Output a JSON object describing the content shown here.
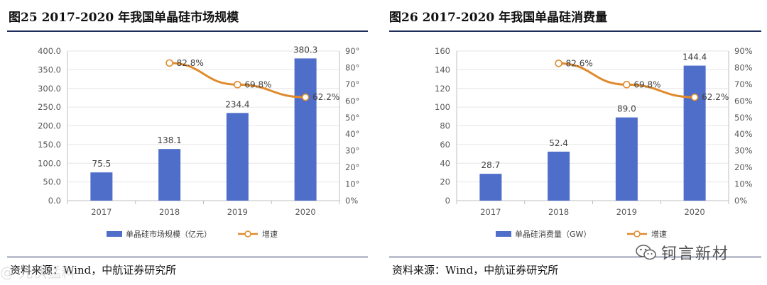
{
  "charts": [
    {
      "title": "图25  2017-2020 年我国单晶硅市场规模",
      "source": "资料来源：Wind，中航证券研究所",
      "chart_data": {
        "type": "bar+line",
        "categories": [
          "2017",
          "2018",
          "2019",
          "2020"
        ],
        "series": [
          {
            "name": "单晶硅市场规模（亿元）",
            "type": "bar",
            "axis": "left",
            "values": [
              75.5,
              138.1,
              234.4,
              380.3
            ],
            "labels": [
              "75.5",
              "138.1",
              "234.4",
              "380.3"
            ]
          },
          {
            "name": "增速",
            "type": "line",
            "axis": "right",
            "values": [
              null,
              82.8,
              69.8,
              62.2
            ],
            "labels": [
              "",
              "82.8%",
              "69.8%",
              "62.2%"
            ]
          }
        ],
        "left_axis": {
          "ylim": [
            0,
            400
          ],
          "ticks": [
            "0.0",
            "50.0",
            "100.0",
            "150.0",
            "200.0",
            "250.0",
            "300.0",
            "350.0",
            "400.0"
          ]
        },
        "right_axis": {
          "ylim": [
            0,
            90
          ],
          "ticks": [
            "0%",
            "10°",
            "20°",
            "30°",
            "40°",
            "50°",
            "60°",
            "70°",
            "80°",
            "90°"
          ]
        },
        "bar_color": "#4f6ec9",
        "line_color": "#e08a2c"
      }
    },
    {
      "title": "图26  2017-2020 年我国单晶硅消费量",
      "source": "资料来源：Wind，中航证券研究所",
      "chart_data": {
        "type": "bar+line",
        "categories": [
          "2017",
          "2018",
          "2019",
          "2020"
        ],
        "series": [
          {
            "name": "单晶硅消费量（GW）",
            "type": "bar",
            "axis": "left",
            "values": [
              28.7,
              52.4,
              89.0,
              144.4
            ],
            "labels": [
              "28.7",
              "52.4",
              "89.0",
              "144.4"
            ]
          },
          {
            "name": "增速",
            "type": "line",
            "axis": "right",
            "values": [
              null,
              82.6,
              69.8,
              62.2
            ],
            "labels": [
              "",
              "82.6%",
              "69.8%",
              "62.2%"
            ]
          }
        ],
        "left_axis": {
          "ylim": [
            0,
            160
          ],
          "ticks": [
            "0",
            "20",
            "40",
            "60",
            "80",
            "100",
            "120",
            "140",
            "160"
          ]
        },
        "right_axis": {
          "ylim": [
            0,
            90
          ],
          "ticks": [
            "0%",
            "10%",
            "20%",
            "30%",
            "40%",
            "50%",
            "60%",
            "70%",
            "80%",
            "90%"
          ]
        },
        "bar_color": "#4f6ec9",
        "line_color": "#e08a2c"
      }
    }
  ],
  "watermark": "@ 光伏猛料",
  "brand": {
    "name": "钶言新材",
    "icon": "wechat-icon"
  }
}
